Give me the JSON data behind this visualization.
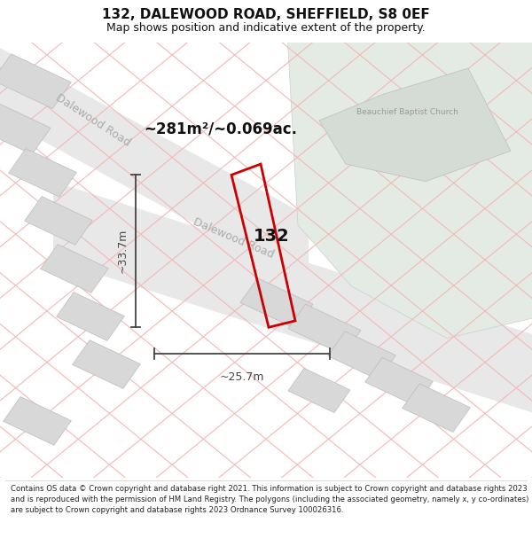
{
  "title": "132, DALEWOOD ROAD, SHEFFIELD, S8 0EF",
  "subtitle": "Map shows position and indicative extent of the property.",
  "title_fontsize": 11,
  "subtitle_fontsize": 9,
  "bg_color": "#ffffff",
  "map_bg": "#f8f8f8",
  "road_color": "#e8e8e8",
  "green_color": "#e4ebe4",
  "green_edge": "#caceca",
  "building_color": "#d8d8d8",
  "building_edge": "#bbbbbb",
  "church_color": "#d5dbd5",
  "church_edge": "#b8c0b8",
  "line_color": "#f2b8b8",
  "property_color": "#cc0000",
  "dim_color": "#444444",
  "road_label_color": "#aaaaaa",
  "church_label_color": "#999999",
  "area_text": "~281m²/~0.069ac.",
  "number_text": "132",
  "road_label_upper": "Dalewood Road",
  "road_label_lower": "Dalewood Road",
  "church_label": "Beauchief Baptist Church",
  "dim_width": "~25.7m",
  "dim_height": "~33.7m",
  "footer_text": "Contains OS data © Crown copyright and database right 2021. This information is subject to Crown copyright and database rights 2023 and is reproduced with the permission of HM Land Registry. The polygons (including the associated geometry, namely x, y co-ordinates) are subject to Crown copyright and database rights 2023 Ordnance Survey 100026316."
}
